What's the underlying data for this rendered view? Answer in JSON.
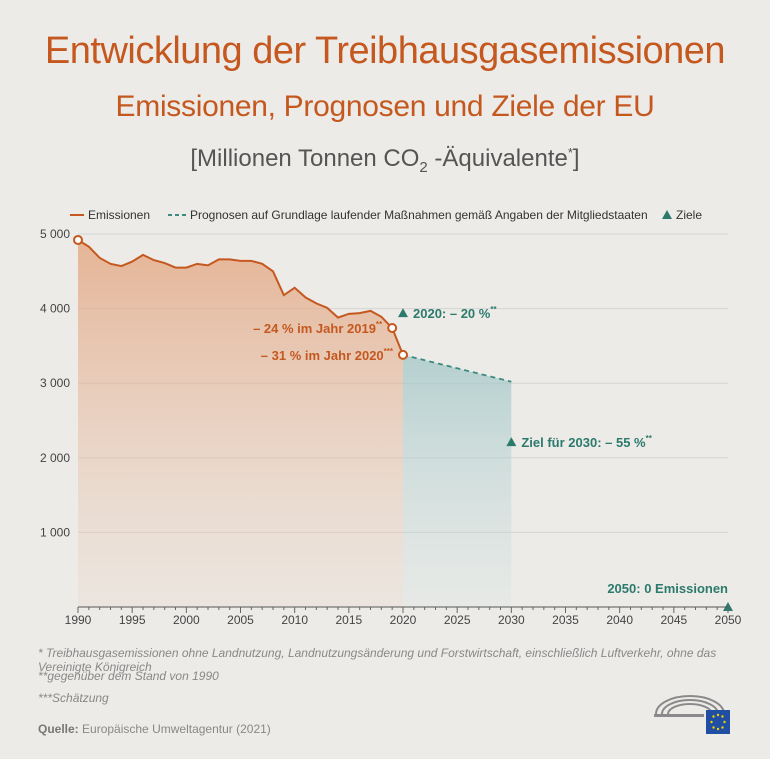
{
  "header": {
    "title": "Entwicklung der Treibhausgasemissionen",
    "subtitle": "Emissionen, Prognosen und Ziele der EU",
    "unit_prefix": "[Millionen Tonnen CO",
    "unit_sub": "2",
    "unit_mid": " -Äquivalente",
    "unit_sup": "*",
    "unit_suffix": "]"
  },
  "chart_data": {
    "type": "line",
    "xlim": [
      1990,
      2050
    ],
    "ylim": [
      0,
      5000
    ],
    "x_ticks": [
      "1990",
      "1995",
      "2000",
      "2005",
      "2010",
      "2015",
      "2020",
      "2025",
      "2030",
      "2035",
      "2040",
      "2045",
      "2050"
    ],
    "y_ticks": [
      "1 000",
      "2 000",
      "3 000",
      "4 000",
      "5 000"
    ],
    "grid": true,
    "legend_placement": "top",
    "legend": {
      "emissions": "Emissionen",
      "projection": "Prognosen auf Grundlage laufender Maßnahmen gemäß Angaben der Mitgliedstaaten",
      "targets": "Ziele"
    },
    "colors": {
      "emissions": "#c5581f",
      "projection": "#3d8a7e",
      "target": "#2c7a6c",
      "grid": "#d4d4d4"
    },
    "series": [
      {
        "name": "Emissionen",
        "x": [
          1990,
          1991,
          1992,
          1993,
          1994,
          1995,
          1996,
          1997,
          1998,
          1999,
          2000,
          2001,
          2002,
          2003,
          2004,
          2005,
          2006,
          2007,
          2008,
          2009,
          2010,
          2011,
          2012,
          2013,
          2014,
          2015,
          2016,
          2017,
          2018,
          2019,
          2020
        ],
        "y": [
          4920,
          4830,
          4680,
          4600,
          4570,
          4630,
          4720,
          4650,
          4610,
          4550,
          4550,
          4600,
          4580,
          4660,
          4660,
          4640,
          4640,
          4600,
          4500,
          4180,
          4280,
          4150,
          4070,
          4010,
          3880,
          3930,
          3940,
          3970,
          3890,
          3740,
          3380
        ]
      },
      {
        "name": "Prognosen auf Grundlage laufender Maßnahmen gemäß Angaben der Mitgliedstaaten",
        "x": [
          2020,
          2030
        ],
        "y": [
          3380,
          3020
        ]
      }
    ],
    "targets": [
      {
        "x": 2020,
        "y": 3940,
        "label": "2020: – 20 %",
        "note": "**"
      },
      {
        "x": 2030,
        "y": 2210,
        "label": "Ziel für 2030: – 55 %",
        "note": "**"
      },
      {
        "x": 2050,
        "y": 0,
        "label": "2050: 0 Emissionen",
        "note": ""
      }
    ],
    "annotations": [
      {
        "x": 2019,
        "y": 3740,
        "label": "– 24 % im Jahr 2019",
        "note": "**"
      },
      {
        "x": 2020,
        "y": 3380,
        "label": "– 31 % im Jahr 2020",
        "note": "***"
      }
    ]
  },
  "footnotes": {
    "f1": "* Treibhausgasemissionen ohne Landnutzung, Landnutzungsänderung und Forstwirtschaft, einschließlich Luftverkehr, ohne das Vereinigte Königreich",
    "f2": "**gegenüber dem Stand von 1990",
    "f3": "***Schätzung"
  },
  "source": {
    "label": "Quelle:",
    "text": " Europäische Umweltagentur (2021)"
  }
}
